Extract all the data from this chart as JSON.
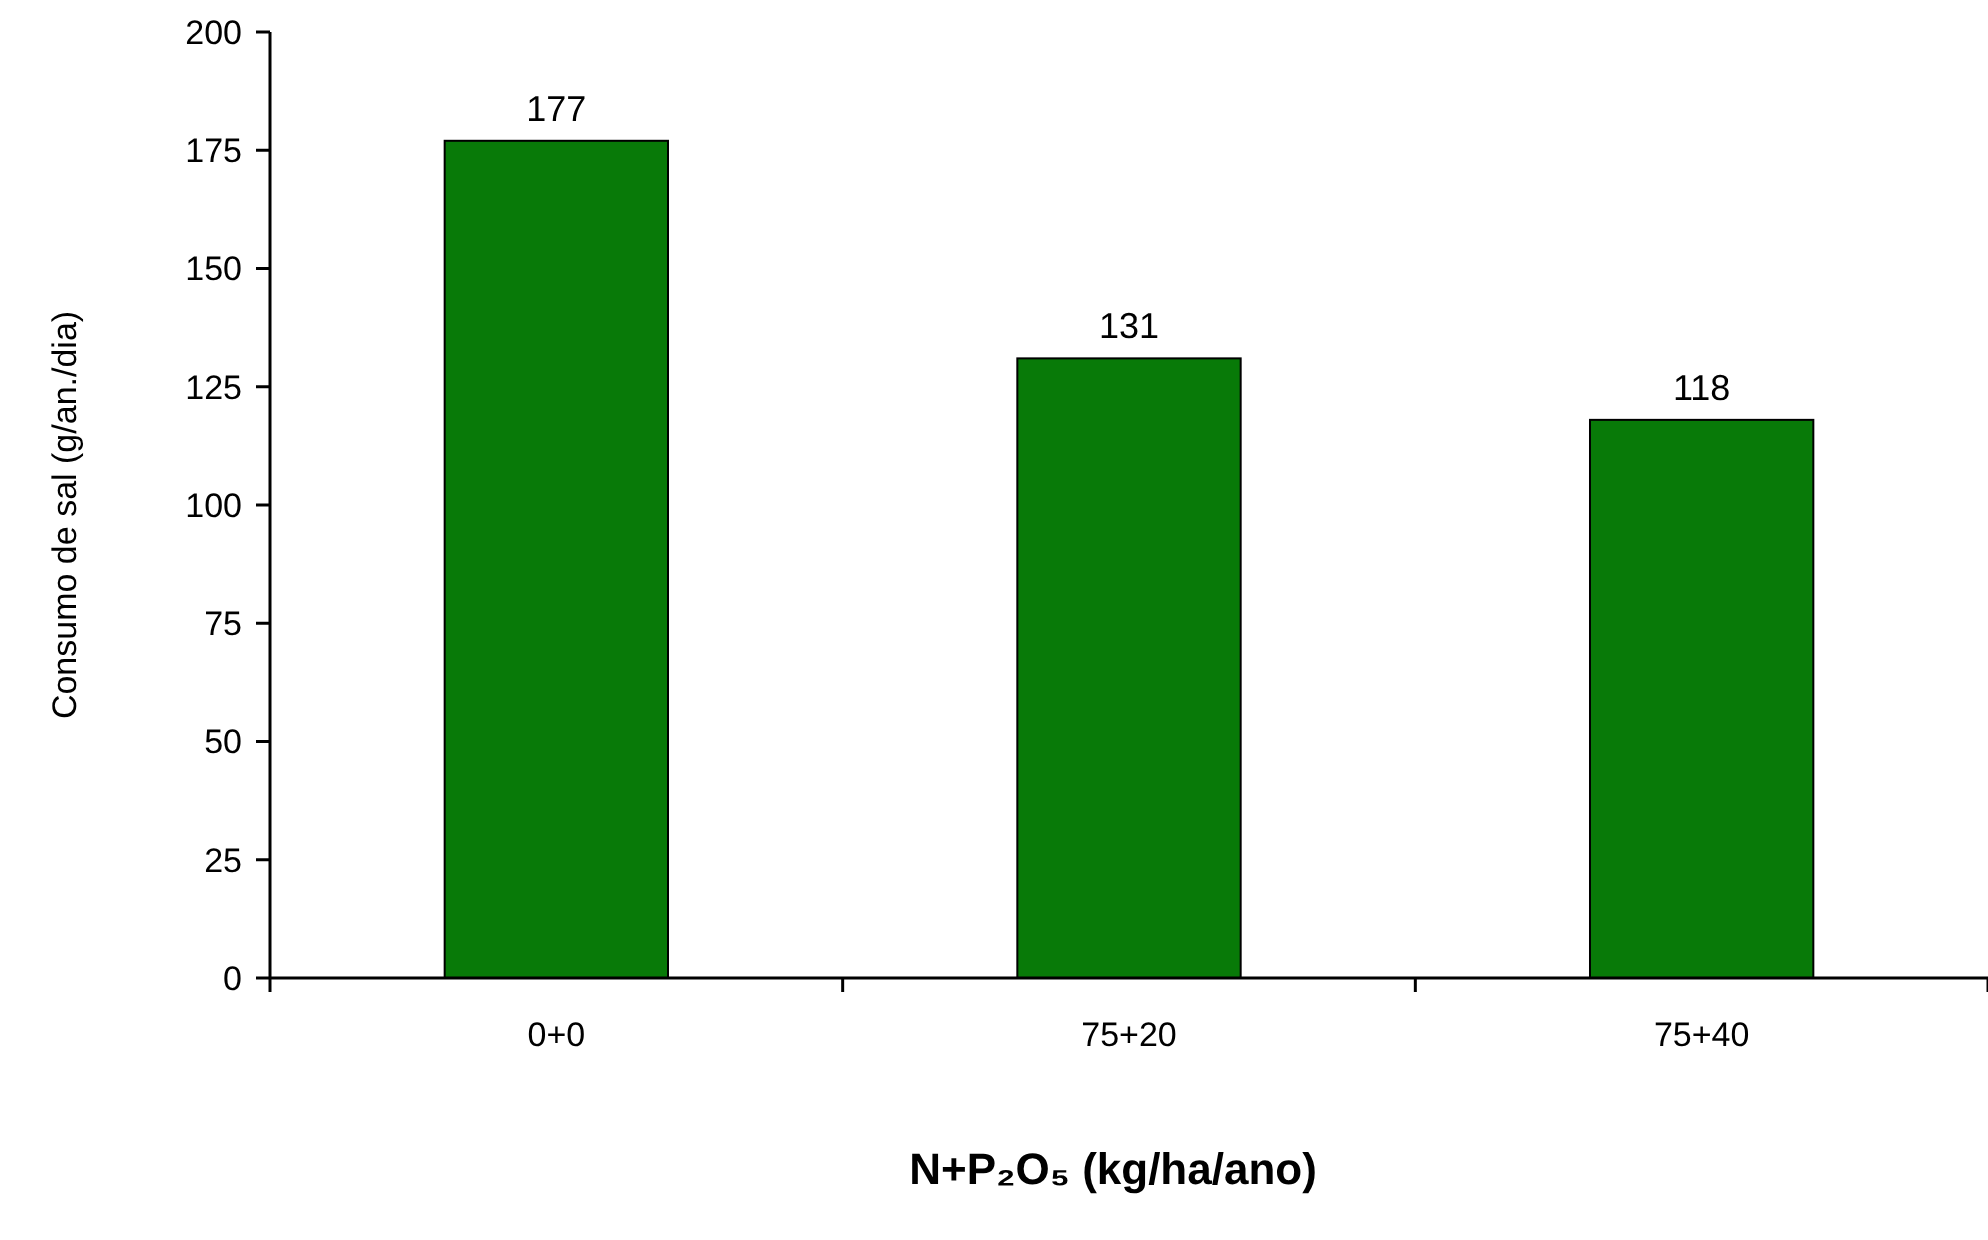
{
  "chart_data": {
    "type": "bar",
    "xlabel": "N+P₂O₅ (kg/ha/ano)",
    "ylabel": "Consumo de sal (g/an./dia)",
    "categories": [
      "0+0",
      "75+20",
      "75+40"
    ],
    "values": [
      177,
      131,
      118
    ],
    "color": "#087a08",
    "ylim": [
      0,
      200
    ],
    "yticks": [
      0,
      25,
      50,
      75,
      100,
      125,
      150,
      175,
      200
    ],
    "grid": false,
    "data_labels": true
  }
}
